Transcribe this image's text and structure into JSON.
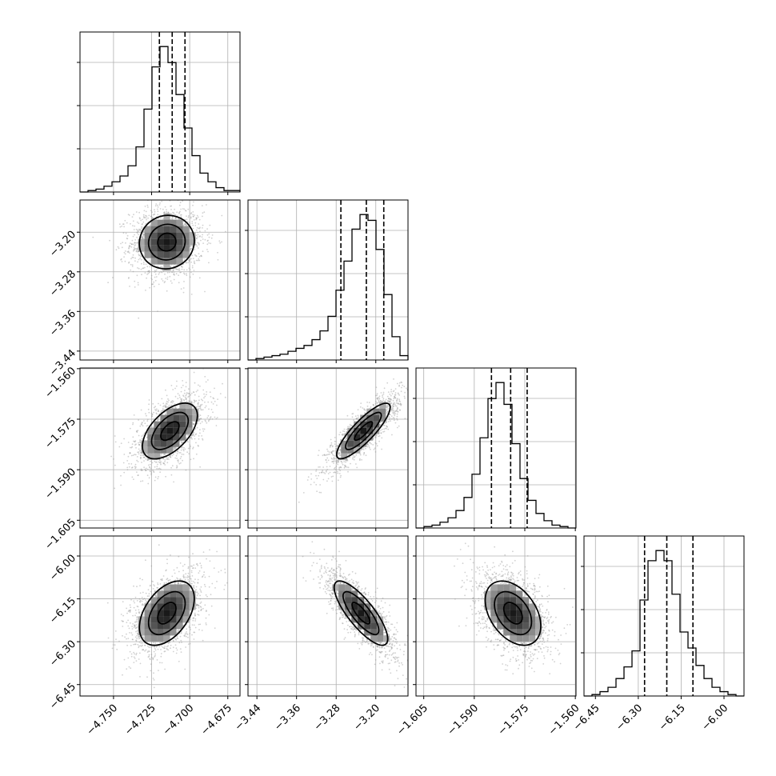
{
  "chart_data": {
    "type": "corner",
    "parameters": [
      {
        "range": [
          -4.772,
          -4.667
        ],
        "ticks": [
          -4.75,
          -4.725,
          -4.7,
          -4.675
        ],
        "tick_labels": [
          "−4.750",
          "−4.725",
          "−4.700",
          "−4.675"
        ],
        "quantiles": [
          -4.7199,
          -4.7115,
          -4.7031
        ],
        "hist_bins": [
          -4.772,
          -4.667
        ],
        "hist_values": [
          0,
          1,
          2,
          4,
          7,
          11,
          18,
          31,
          57,
          86,
          100,
          89,
          67,
          44,
          25,
          13,
          7,
          3,
          1,
          1
        ]
      },
      {
        "range": [
          -3.458,
          -3.135
        ],
        "ticks": [
          -3.44,
          -3.36,
          -3.28,
          -3.2
        ],
        "tick_labels": [
          "−3.44",
          "−3.36",
          "−3.28",
          "−3.20"
        ],
        "quantiles": [
          -3.2705,
          -3.2191,
          -3.1839
        ],
        "hist_bins": [
          -3.458,
          -3.135
        ],
        "hist_values": [
          0,
          1,
          2,
          3,
          4,
          6,
          8,
          10,
          14,
          20,
          30,
          48,
          68,
          90,
          100,
          96,
          76,
          45,
          16,
          3
        ]
      },
      {
        "range": [
          -1.6073,
          -1.5598
        ],
        "ticks": [
          -1.605,
          -1.59,
          -1.575,
          -1.56
        ],
        "tick_labels": [
          "−1.605",
          "−1.590",
          "−1.575",
          "−1.560"
        ],
        "quantiles": [
          -1.5849,
          -1.5792,
          -1.5743
        ],
        "hist_bins": [
          -1.6073,
          -1.5598
        ],
        "hist_values": [
          0,
          1,
          2,
          4,
          7,
          12,
          21,
          37,
          62,
          89,
          100,
          85,
          58,
          34,
          19,
          10,
          5,
          2,
          1,
          0
        ]
      },
      {
        "range": [
          -6.49,
          -5.93
        ],
        "ticks": [
          -6.45,
          -6.3,
          -6.15,
          -6.0
        ],
        "tick_labels": [
          "−6.45",
          "−6.30",
          "−6.15",
          "−6.00"
        ],
        "quantiles": [
          -6.278,
          -6.2002,
          -6.1087
        ],
        "hist_bins": [
          -6.49,
          -5.93
        ],
        "hist_values": [
          0,
          1,
          3,
          6,
          12,
          20,
          31,
          66,
          93,
          100,
          93,
          70,
          44,
          33,
          21,
          12,
          6,
          3,
          1,
          0
        ]
      }
    ],
    "pairs": [
      {
        "row": 1,
        "col": 0,
        "center": [
          -4.715,
          -3.22
        ],
        "spread": [
          0.012,
          0.036
        ],
        "corr": 0.05
      },
      {
        "row": 2,
        "col": 0,
        "center": [
          -4.713,
          -1.5785
        ],
        "spread": [
          0.012,
          0.0055
        ],
        "corr": 0.55
      },
      {
        "row": 2,
        "col": 1,
        "center": [
          -3.225,
          -1.5785
        ],
        "spread": [
          0.036,
          0.0055
        ],
        "corr": 0.85
      },
      {
        "row": 3,
        "col": 0,
        "center": [
          -4.715,
          -6.2
        ],
        "spread": [
          0.012,
          0.075
        ],
        "corr": 0.45
      },
      {
        "row": 3,
        "col": 1,
        "center": [
          -3.23,
          -6.2
        ],
        "spread": [
          0.036,
          0.075
        ],
        "corr": -0.8
      },
      {
        "row": 3,
        "col": 2,
        "center": [
          -1.5785,
          -6.2
        ],
        "spread": [
          0.0055,
          0.075
        ],
        "corr": -0.4
      }
    ],
    "grid": true,
    "contour_levels": [
      0.5,
      1.0,
      1.5
    ]
  }
}
